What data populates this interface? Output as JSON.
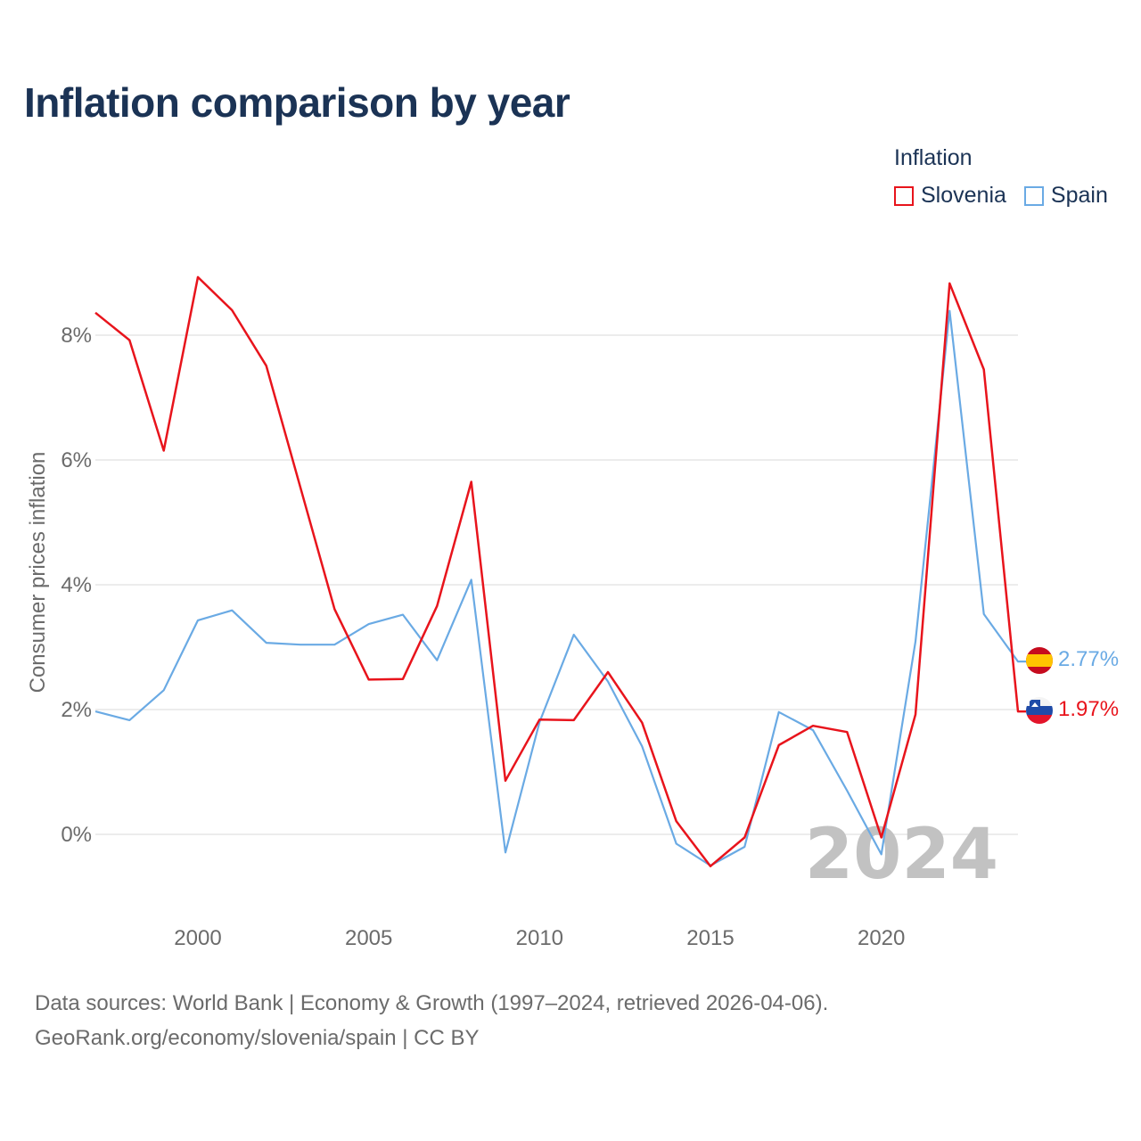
{
  "title": "Inflation comparison by year",
  "legend": {
    "title": "Inflation",
    "items": [
      {
        "label": "Slovenia",
        "color": "#e8141c"
      },
      {
        "label": "Spain",
        "color": "#6aaae4"
      }
    ]
  },
  "chart_data": {
    "type": "line",
    "title": "Inflation comparison by year",
    "xlabel": "",
    "ylabel": "Consumer prices inflation",
    "x": [
      1997,
      1998,
      1999,
      2000,
      2001,
      2002,
      2003,
      2004,
      2005,
      2006,
      2007,
      2008,
      2009,
      2010,
      2011,
      2012,
      2013,
      2014,
      2015,
      2016,
      2017,
      2018,
      2019,
      2020,
      2021,
      2022,
      2023,
      2024
    ],
    "xticks": [
      2000,
      2005,
      2010,
      2015,
      2020
    ],
    "xtick_labels": [
      "2000",
      "2005",
      "2010",
      "2015",
      "2020"
    ],
    "xlim": [
      1997,
      2024
    ],
    "yticks": [
      0,
      2,
      4,
      6,
      8
    ],
    "ytick_labels": [
      "0%",
      "2%",
      "4%",
      "6%",
      "8%"
    ],
    "ylim": [
      -1,
      9
    ],
    "grid": true,
    "legend_position": "top-right",
    "watermark_year": "2024",
    "series": [
      {
        "name": "Slovenia",
        "color": "#e8141c",
        "values": [
          8.36,
          7.92,
          6.15,
          8.93,
          8.4,
          7.51,
          5.56,
          3.61,
          2.48,
          2.49,
          3.66,
          5.65,
          0.86,
          1.84,
          1.83,
          2.6,
          1.79,
          0.21,
          -0.51,
          -0.05,
          1.43,
          1.74,
          1.64,
          -0.05,
          1.92,
          8.83,
          7.45,
          1.97
        ],
        "end_label": "1.97%",
        "flag": "slovenia-flag"
      },
      {
        "name": "Spain",
        "color": "#6aaae4",
        "values": [
          1.97,
          1.83,
          2.31,
          3.43,
          3.59,
          3.07,
          3.04,
          3.04,
          3.37,
          3.52,
          2.79,
          4.08,
          -0.29,
          1.8,
          3.2,
          2.45,
          1.41,
          -0.15,
          -0.5,
          -0.2,
          1.96,
          1.67,
          0.7,
          -0.32,
          3.09,
          8.39,
          3.53,
          2.77
        ],
        "end_label": "2.77%",
        "flag": "spain-flag"
      }
    ]
  },
  "footer": {
    "line1": "Data sources: World Bank | Economy & Growth (1997–2024, retrieved 2026-04-06).",
    "line2": "GeoRank.org/economy/slovenia/spain | CC BY"
  }
}
